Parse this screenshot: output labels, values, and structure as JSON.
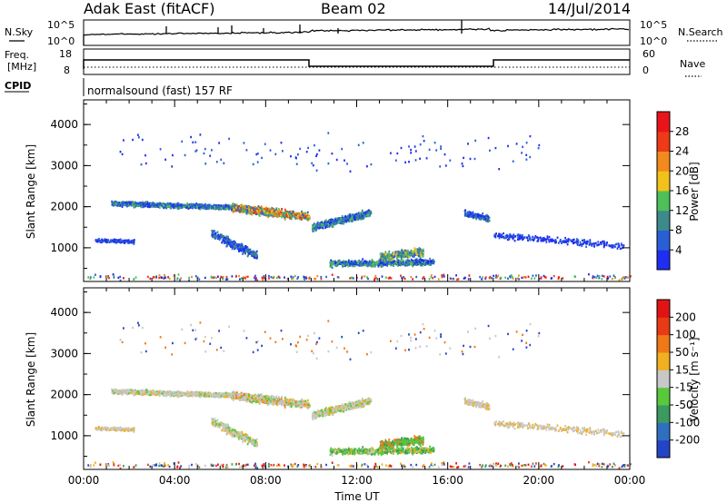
{
  "header": {
    "title": "Adak East (fitACF)",
    "beam": "Beam 02",
    "date": "14/Jul/2014"
  },
  "strip": {
    "nsky_label": "N.Sky",
    "nsearch_label": "N.Search",
    "freq_label": "Freq.",
    "mhz_label": "[MHz]",
    "nave_label": "Nave",
    "cpid_label": "CPID",
    "cpid_text": "normalsound (fast) 157 RF",
    "noise_ticks": [
      "10^5",
      "10^0"
    ],
    "freq_ticks": [
      "18",
      "8"
    ],
    "nave_ticks": [
      "60",
      "0"
    ]
  },
  "chart_data": [
    {
      "type": "heatmap",
      "name": "power",
      "xlabel": "",
      "ylabel": "Slant Range [km]",
      "x_ticks": [
        "00:00",
        "04:00",
        "08:00",
        "12:00",
        "16:00",
        "20:00",
        "00:00"
      ],
      "x_range_hours": [
        0,
        24
      ],
      "y_ticks": [
        1000,
        2000,
        3000,
        4000
      ],
      "y_range": [
        180,
        4600
      ],
      "colorbar_label": "Power [dB]",
      "colorbar_ticks": [
        "4",
        "8",
        "12",
        "16",
        "20",
        "24",
        "28"
      ],
      "colorbar_colors": [
        "#1f2ef0",
        "#2a5fd6",
        "#3c8a8c",
        "#4fbf5a",
        "#f2c21a",
        "#f28a1e",
        "#ee3a16",
        "#e8141a"
      ]
    },
    {
      "type": "heatmap",
      "name": "velocity",
      "xlabel": "Time UT",
      "ylabel": "Slant Range [km]",
      "x_ticks": [
        "00:00",
        "04:00",
        "08:00",
        "12:00",
        "16:00",
        "20:00",
        "00:00"
      ],
      "x_range_hours": [
        0,
        24
      ],
      "y_ticks": [
        1000,
        2000,
        3000,
        4000
      ],
      "y_range": [
        180,
        4600
      ],
      "colorbar_label": "Velocity [m s⁻¹]",
      "colorbar_ticks": [
        "200",
        "100",
        "50",
        "15",
        "-15",
        "-50",
        "-100",
        "-200"
      ],
      "colorbar_colors": [
        "#2444c8",
        "#2f6fbf",
        "#3a9a60",
        "#58c83c",
        "#c8c8c8",
        "#f0b020",
        "#f07818",
        "#e83a14",
        "#e01414"
      ]
    }
  ]
}
